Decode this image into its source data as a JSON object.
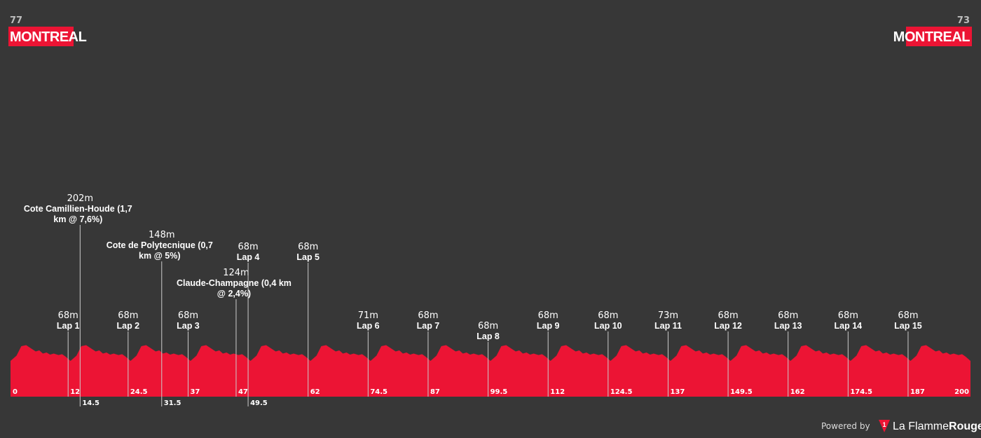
{
  "colors": {
    "background": "#373737",
    "profile": "#ec1434",
    "city_badge": "#ec1434",
    "marker_line": "#cccccc"
  },
  "start": {
    "altitude": "77",
    "city": "MONTREAL"
  },
  "finish": {
    "altitude": "73",
    "city": "MONTREAL"
  },
  "footer": {
    "powered_by": "Powered by",
    "brand_prefix": "La Flamme",
    "brand_suffix": "Rouge",
    "logo_icon": "flamme-rouge-logo-icon"
  },
  "chart_data": {
    "type": "area",
    "title": "",
    "xlabel": "",
    "ylabel": "",
    "xlim": [
      0,
      200
    ],
    "distance_ticks": [
      "0",
      "12",
      "24.5",
      "37",
      "47",
      "62",
      "74.5",
      "87",
      "99.5",
      "112",
      "124.5",
      "137",
      "149.5",
      "162",
      "174.5",
      "187",
      "200"
    ],
    "distance_ticks_offset": [
      "14.5",
      "31.5",
      "49.5"
    ],
    "lap_profile": {
      "lap_length_km": 12.5,
      "relative_altitude": [
        [
          0,
          0.1
        ],
        [
          0.1,
          0.35
        ],
        [
          0.18,
          0.8
        ],
        [
          0.26,
          0.85
        ],
        [
          0.34,
          0.7
        ],
        [
          0.42,
          0.55
        ],
        [
          0.48,
          0.6
        ],
        [
          0.54,
          0.45
        ],
        [
          0.6,
          0.5
        ],
        [
          0.66,
          0.4
        ],
        [
          0.72,
          0.45
        ],
        [
          0.8,
          0.38
        ],
        [
          0.86,
          0.42
        ],
        [
          0.92,
          0.3
        ],
        [
          1.0,
          0.1
        ]
      ]
    },
    "waypoints": [
      {
        "km": 12,
        "altitude": "68m",
        "name": "Lap 1",
        "level": 0
      },
      {
        "km": 14.5,
        "altitude": "202m",
        "name": "Cote Camillien-Houde (1,7 km @ 7,6%)",
        "lines": [
          "Cote Camillien-Houde (1,7",
          "km @ 7,6%)"
        ],
        "level": 4
      },
      {
        "km": 24.5,
        "altitude": "68m",
        "name": "Lap 2",
        "level": 0
      },
      {
        "km": 31.5,
        "altitude": "148m",
        "name": "Cote de Polytecnique (0,7 km @ 5%)",
        "lines": [
          "Cote de Polytecnique (0,7",
          "km @ 5%)"
        ],
        "level": 3
      },
      {
        "km": 37,
        "altitude": "68m",
        "name": "Lap 3",
        "level": 0
      },
      {
        "km": 47,
        "altitude": "124m",
        "name": "Claude-Champagne (0,4 km @ 2,4%)",
        "lines": [
          "Claude-Champagne (0,4 km",
          "@ 2,4%)"
        ],
        "level": 1
      },
      {
        "km": 49.5,
        "altitude": "68m",
        "name": "Lap 4",
        "level": 2
      },
      {
        "km": 62,
        "altitude": "68m",
        "name": "Lap 5",
        "level": 2
      },
      {
        "km": 74.5,
        "altitude": "71m",
        "name": "Lap 6",
        "level": 0
      },
      {
        "km": 87,
        "altitude": "68m",
        "name": "Lap 7",
        "level": 0
      },
      {
        "km": 99.5,
        "altitude": "68m",
        "name": "Lap 8",
        "level": -1
      },
      {
        "km": 112,
        "altitude": "68m",
        "name": "Lap 9",
        "level": 0
      },
      {
        "km": 124.5,
        "altitude": "68m",
        "name": "Lap 10",
        "level": 0
      },
      {
        "km": 137,
        "altitude": "73m",
        "name": "Lap 11",
        "level": 0
      },
      {
        "km": 149.5,
        "altitude": "68m",
        "name": "Lap 12",
        "level": 0
      },
      {
        "km": 162,
        "altitude": "68m",
        "name": "Lap 13",
        "level": 0
      },
      {
        "km": 174.5,
        "altitude": "68m",
        "name": "Lap 14",
        "level": 0
      },
      {
        "km": 187,
        "altitude": "68m",
        "name": "Lap 15",
        "level": 0
      }
    ]
  }
}
